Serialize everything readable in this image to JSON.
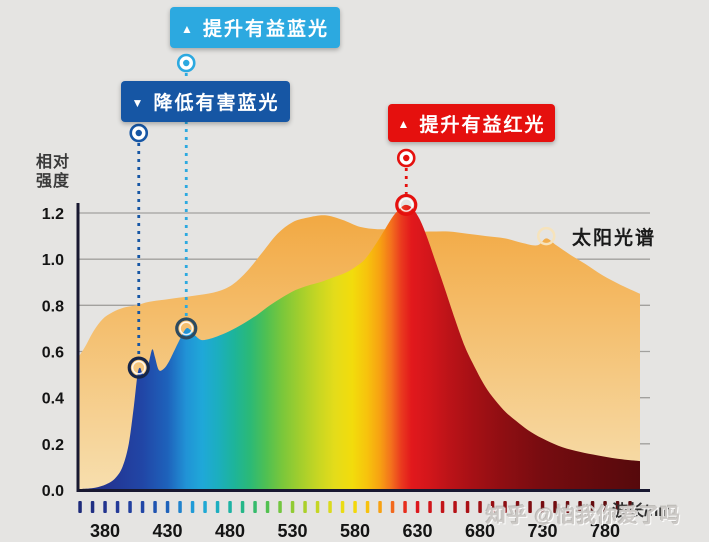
{
  "background_color": "#E5E4E2",
  "y_axis": {
    "title_lines": [
      "相对",
      "强度"
    ],
    "tick_values": [
      "1.2",
      "1.0",
      "0.8",
      "0.6",
      "0.4",
      "0.2",
      "0.0"
    ]
  },
  "x_axis": {
    "labels": [
      "380",
      "430",
      "480",
      "530",
      "580",
      "630",
      "680",
      "730",
      "780"
    ],
    "unit": "波长/nm"
  },
  "callouts": [
    {
      "arrow": "▲",
      "text": "提升有益蓝光",
      "color": "#2CA9E0"
    },
    {
      "arrow": "▼",
      "text": "降低有害蓝光",
      "color": "#1656A4"
    },
    {
      "arrow": "▲",
      "text": "提升有益红光",
      "color": "#E5100E"
    }
  ],
  "solar_label": "太阳光谱",
  "watermark": "知乎 @怕我你爱了吗",
  "chart_data": {
    "type": "area",
    "title": "",
    "xlabel": "波长/nm",
    "ylabel": "相对强度",
    "xlim": [
      358,
      808
    ],
    "ylim": [
      0,
      1.2
    ],
    "grid_values": [
      0.2,
      0.4,
      0.6,
      0.8,
      1.0,
      1.2
    ],
    "x_tick_labels": [
      "380",
      "430",
      "480",
      "530",
      "580",
      "630",
      "680",
      "730",
      "780"
    ],
    "x_minor_tick_range": [
      360,
      800
    ],
    "x_minor_tick_step": 10,
    "legend_position": "inline-annotation",
    "series": [
      {
        "id": "solar-spectrum",
        "label": "太阳光谱",
        "fill": "solar-gradient",
        "points": [
          [
            358,
            0.57
          ],
          [
            364,
            0.62
          ],
          [
            371,
            0.69
          ],
          [
            378,
            0.74
          ],
          [
            386,
            0.77
          ],
          [
            395,
            0.79
          ],
          [
            405,
            0.8
          ],
          [
            415,
            0.815
          ],
          [
            428,
            0.825
          ],
          [
            442,
            0.835
          ],
          [
            456,
            0.845
          ],
          [
            470,
            0.86
          ],
          [
            482,
            0.89
          ],
          [
            494,
            0.95
          ],
          [
            506,
            1.03
          ],
          [
            518,
            1.11
          ],
          [
            530,
            1.16
          ],
          [
            542,
            1.18
          ],
          [
            556,
            1.19
          ],
          [
            570,
            1.17
          ],
          [
            584,
            1.14
          ],
          [
            598,
            1.13
          ],
          [
            612,
            1.13
          ],
          [
            626,
            1.12
          ],
          [
            640,
            1.12
          ],
          [
            655,
            1.12
          ],
          [
            670,
            1.11
          ],
          [
            685,
            1.1
          ],
          [
            700,
            1.09
          ],
          [
            714,
            1.07
          ],
          [
            726,
            1.06
          ],
          [
            733,
            1.09
          ],
          [
            741,
            1.06
          ],
          [
            752,
            1.02
          ],
          [
            764,
            0.98
          ],
          [
            778,
            0.93
          ],
          [
            792,
            0.89
          ],
          [
            808,
            0.85
          ]
        ]
      },
      {
        "id": "light-source-spectrum",
        "label": "",
        "fill": "spectrum-gradient",
        "points": [
          [
            362,
            0.005
          ],
          [
            372,
            0.01
          ],
          [
            381,
            0.025
          ],
          [
            388,
            0.05
          ],
          [
            394,
            0.1
          ],
          [
            399,
            0.2
          ],
          [
            403,
            0.36
          ],
          [
            406,
            0.5
          ],
          [
            408,
            0.53
          ],
          [
            410,
            0.505
          ],
          [
            413,
            0.5
          ],
          [
            416,
            0.575
          ],
          [
            418,
            0.61
          ],
          [
            420,
            0.575
          ],
          [
            423,
            0.52
          ],
          [
            427,
            0.525
          ],
          [
            431,
            0.555
          ],
          [
            436,
            0.61
          ],
          [
            441,
            0.665
          ],
          [
            445,
            0.7
          ],
          [
            448,
            0.695
          ],
          [
            452,
            0.67
          ],
          [
            457,
            0.65
          ],
          [
            464,
            0.655
          ],
          [
            472,
            0.67
          ],
          [
            482,
            0.695
          ],
          [
            492,
            0.725
          ],
          [
            502,
            0.76
          ],
          [
            512,
            0.8
          ],
          [
            522,
            0.835
          ],
          [
            532,
            0.865
          ],
          [
            542,
            0.885
          ],
          [
            552,
            0.9
          ],
          [
            562,
            0.92
          ],
          [
            572,
            0.94
          ],
          [
            580,
            0.965
          ],
          [
            588,
            1.0
          ],
          [
            596,
            1.06
          ],
          [
            604,
            1.13
          ],
          [
            611,
            1.19
          ],
          [
            617,
            1.225
          ],
          [
            621,
            1.235
          ],
          [
            626,
            1.22
          ],
          [
            632,
            1.17
          ],
          [
            638,
            1.09
          ],
          [
            645,
            0.98
          ],
          [
            652,
            0.87
          ],
          [
            660,
            0.74
          ],
          [
            668,
            0.62
          ],
          [
            676,
            0.53
          ],
          [
            684,
            0.45
          ],
          [
            692,
            0.39
          ],
          [
            701,
            0.335
          ],
          [
            711,
            0.29
          ],
          [
            721,
            0.25
          ],
          [
            733,
            0.215
          ],
          [
            746,
            0.185
          ],
          [
            760,
            0.165
          ],
          [
            774,
            0.15
          ],
          [
            790,
            0.135
          ],
          [
            808,
            0.125
          ]
        ]
      }
    ],
    "annotations": [
      {
        "id": "boost-blue",
        "label": "提升有益蓝光",
        "symbol": "▲",
        "color": "#2CA9E0",
        "x": 445,
        "y": 0.7
      },
      {
        "id": "reduce-blue",
        "label": "降低有害蓝光",
        "symbol": "▼",
        "color": "#1656A4",
        "x": 407,
        "y": 0.53
      },
      {
        "id": "boost-red",
        "label": "提升有益红光",
        "symbol": "▲",
        "color": "#E5100E",
        "x": 621,
        "y": 1.235
      },
      {
        "id": "solar-point",
        "label": "太阳光谱",
        "color": "#F6E3BC",
        "x": 733,
        "y": 1.1
      }
    ],
    "spectrum_stops": [
      [
        362,
        "#1E2B7A"
      ],
      [
        385,
        "#233795"
      ],
      [
        410,
        "#2146A6"
      ],
      [
        430,
        "#1E62BB"
      ],
      [
        445,
        "#2193D6"
      ],
      [
        458,
        "#1FA8D8"
      ],
      [
        470,
        "#1CAEC0"
      ],
      [
        483,
        "#1DB49B"
      ],
      [
        496,
        "#2BB977"
      ],
      [
        509,
        "#4FC052"
      ],
      [
        522,
        "#7AC73B"
      ],
      [
        536,
        "#A2CE2D"
      ],
      [
        550,
        "#C6D623"
      ],
      [
        564,
        "#E4DC1A"
      ],
      [
        578,
        "#F2DC0C"
      ],
      [
        590,
        "#F7C20D"
      ],
      [
        600,
        "#F7A112"
      ],
      [
        609,
        "#F3701D"
      ],
      [
        617,
        "#EA3A1E"
      ],
      [
        625,
        "#E2191C"
      ],
      [
        638,
        "#D4161B"
      ],
      [
        655,
        "#BC1318"
      ],
      [
        675,
        "#A51015"
      ],
      [
        700,
        "#8D0E12"
      ],
      [
        730,
        "#770C10"
      ],
      [
        760,
        "#690B0E"
      ],
      [
        785,
        "#5F0A0D"
      ],
      [
        808,
        "#56090C"
      ]
    ],
    "solar_fill_colors": [
      "#F2A73F",
      "#F5C983",
      "#F7DFAF"
    ],
    "axis_color": "#181830",
    "grid_color": "#A2A19E",
    "tick_label_color": "#141414"
  }
}
